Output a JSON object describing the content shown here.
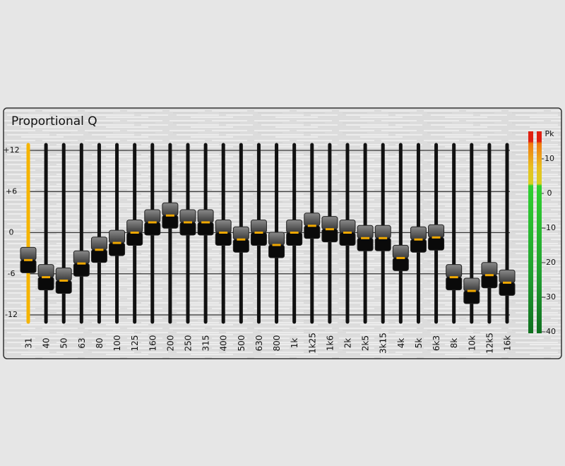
{
  "title": "Proportional Q",
  "scale": [
    {
      "value": 12,
      "label": "+12"
    },
    {
      "value": 6,
      "label": "+6"
    },
    0,
    -6,
    -12
  ],
  "bands": [
    {
      "label": "31",
      "gain": -4
    },
    {
      "label": "40",
      "gain": -6.5
    },
    {
      "label": "50",
      "gain": -7
    },
    {
      "label": "63",
      "gain": -4.5
    },
    {
      "label": "80",
      "gain": -2.5
    },
    {
      "label": "100",
      "gain": -1.5
    },
    {
      "label": "125",
      "gain": 0
    },
    {
      "label": "160",
      "gain": 1.5
    },
    {
      "label": "200",
      "gain": 2.5
    },
    {
      "label": "250",
      "gain": 1.5
    },
    {
      "label": "315",
      "gain": 1.5
    },
    {
      "label": "400",
      "gain": 0
    },
    {
      "label": "500",
      "gain": -1
    },
    {
      "label": "630",
      "gain": 0
    },
    {
      "label": "800",
      "gain": -1.8
    },
    {
      "label": "1k",
      "gain": 0
    },
    {
      "label": "1k25",
      "gain": 1
    },
    {
      "label": "1k6",
      "gain": 0.5
    },
    {
      "label": "2k",
      "gain": 0
    },
    {
      "label": "2k5",
      "gain": -0.8
    },
    {
      "label": "3k15",
      "gain": -0.8
    },
    {
      "label": "4k",
      "gain": -3.7
    },
    {
      "label": "5k",
      "gain": -1
    },
    {
      "label": "6k3",
      "gain": -0.7
    },
    {
      "label": "8k",
      "gain": -6.5
    },
    {
      "label": "10k",
      "gain": -8.5
    },
    {
      "label": "12k5",
      "gain": -6.2
    },
    {
      "label": "16k",
      "gain": -7.3
    }
  ],
  "meter": {
    "peak_label": "Pk",
    "ticks": [
      10,
      0,
      -10,
      -20,
      -30,
      -40
    ]
  }
}
